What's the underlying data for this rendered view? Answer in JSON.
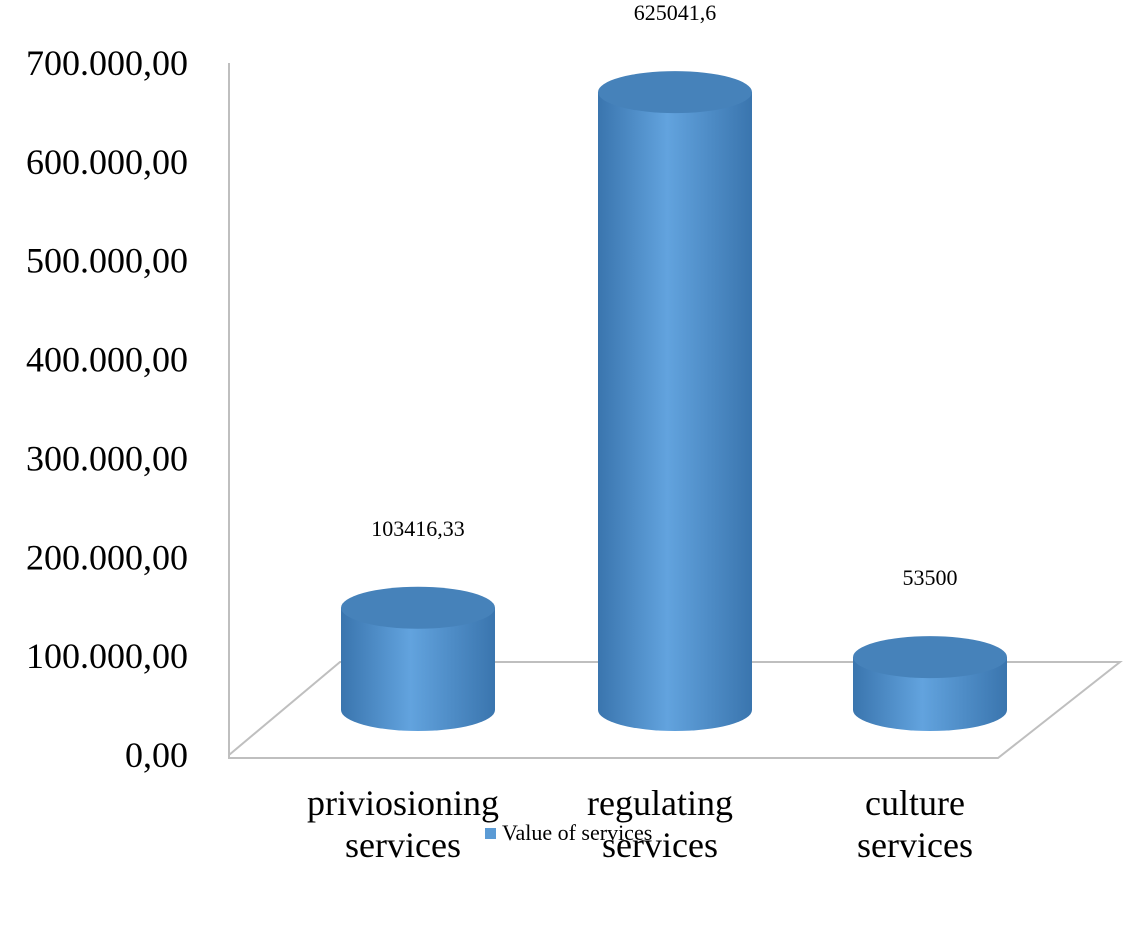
{
  "chart_data": {
    "type": "bar",
    "categories": [
      [
        "priviosioning",
        "services"
      ],
      [
        "regulating",
        "services"
      ],
      [
        "culture",
        "services"
      ]
    ],
    "series": [
      {
        "name": "Value of services",
        "values": [
          103416.33,
          625041.6,
          53500
        ]
      }
    ],
    "data_labels": [
      "103416,33",
      "625041,6",
      "53500"
    ],
    "y_ticks": [
      "0,00",
      "100.000,00",
      "200.000,00",
      "300.000,00",
      "400.000,00",
      "500.000,00",
      "600.000,00",
      "700.000,00"
    ],
    "ylim": [
      0,
      700000
    ],
    "grid": false,
    "legend_position": "bottom",
    "colors": {
      "bar": "#5b9bd5",
      "bar_dark": "#3a75ae",
      "bar_top": "#4682ba",
      "axis": "#bfbfbf"
    }
  }
}
